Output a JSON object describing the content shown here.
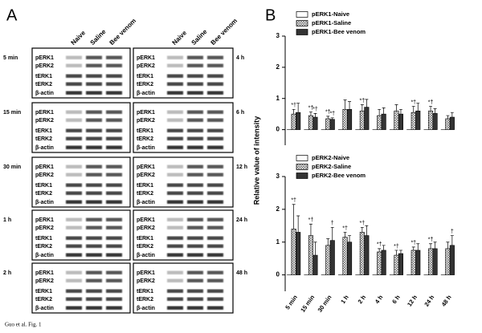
{
  "panel_a": {
    "label": "A",
    "lanes": [
      "Naive",
      "Saline",
      "Bee venom"
    ],
    "proteins": [
      "pERK1",
      "pERK2",
      "tERK1",
      "tERK2",
      "β-actin"
    ],
    "left_times": [
      "5 min",
      "15 min",
      "30 min",
      "1 h",
      "2 h"
    ],
    "right_times": [
      "4 h",
      "6 h",
      "12 h",
      "24 h",
      "48 h"
    ]
  },
  "panel_b": {
    "label": "B",
    "y_label": "Relative value of intensity"
  },
  "chart_data": [
    {
      "type": "bar",
      "categories": [
        "5 min",
        "15 min",
        "30 min",
        "1 h",
        "2 h",
        "4 h",
        "6 h",
        "12 h",
        "24 h",
        "48 h"
      ],
      "ylim": [
        -0.5,
        3
      ],
      "yticks": [
        0,
        1,
        2,
        3
      ],
      "series": [
        {
          "name": "pERK1-Naive",
          "color": "#ffffff",
          "values": [
            0,
            0,
            0,
            0,
            0,
            0,
            0,
            0,
            0,
            0
          ]
        },
        {
          "name": "pERK1-Saline",
          "color": "#777777",
          "pattern": "crosshatch",
          "values": [
            0.5,
            0.45,
            0.35,
            0.65,
            0.6,
            0.45,
            0.6,
            0.55,
            0.6,
            0.35
          ],
          "errors": [
            0.15,
            0.12,
            0.08,
            0.3,
            0.2,
            0.2,
            0.2,
            0.2,
            0.15,
            0.1
          ],
          "markers": [
            "*†",
            "*†",
            "*†",
            null,
            "*†",
            null,
            null,
            "*†",
            "*†",
            null
          ]
        },
        {
          "name": "pERK1-Bee venom",
          "color": "#333333",
          "values": [
            0.55,
            0.4,
            0.33,
            0.65,
            0.72,
            0.5,
            0.5,
            0.6,
            0.52,
            0.4
          ],
          "errors": [
            0.3,
            0.12,
            0.05,
            0.25,
            0.25,
            0.2,
            0.15,
            0.25,
            0.15,
            0.15
          ],
          "markers": [
            null,
            "*†",
            "*†",
            null,
            null,
            null,
            null,
            null,
            null,
            null
          ]
        }
      ]
    },
    {
      "type": "bar",
      "categories": [
        "5 min",
        "15 min",
        "30 min",
        "1 h",
        "2 h",
        "4 h",
        "6 h",
        "12 h",
        "24 h",
        "48 h"
      ],
      "ylim": [
        -0.5,
        3
      ],
      "yticks": [
        0,
        1,
        2,
        3
      ],
      "series": [
        {
          "name": "pERK2-Naive",
          "color": "#ffffff",
          "values": [
            0,
            0,
            0,
            0,
            0,
            0,
            0,
            0,
            0,
            0
          ]
        },
        {
          "name": "pERK2-Saline",
          "color": "#777777",
          "pattern": "crosshatch",
          "values": [
            1.4,
            1.2,
            0.9,
            1.15,
            1.3,
            0.7,
            0.6,
            0.75,
            0.8,
            0.8
          ],
          "errors": [
            0.75,
            0.35,
            0.2,
            0.15,
            0.15,
            0.1,
            0.15,
            0.1,
            0.15,
            0.2
          ],
          "markers": [
            "*†",
            "*†",
            null,
            "*†",
            "*†",
            "*†",
            "*†",
            "*†",
            "*†",
            null
          ]
        },
        {
          "name": "pERK2-Bee venom",
          "color": "#333333",
          "values": [
            1.3,
            0.6,
            1.05,
            1.0,
            1.2,
            0.75,
            0.65,
            0.75,
            0.8,
            0.9
          ],
          "errors": [
            0.5,
            0.4,
            0.4,
            0.2,
            0.3,
            0.15,
            0.1,
            0.2,
            0.2,
            0.3
          ],
          "markers": [
            null,
            null,
            "†",
            null,
            null,
            null,
            null,
            null,
            null,
            "†"
          ]
        }
      ]
    }
  ],
  "caption": "Guo et al. Fig. 1"
}
